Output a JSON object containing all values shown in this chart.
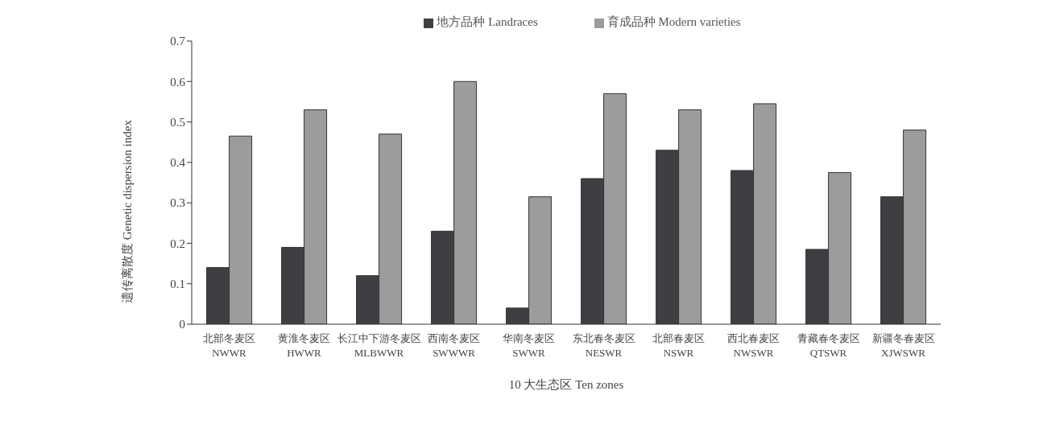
{
  "chart_data": {
    "type": "bar",
    "xlabel": "10 大生态区  Ten zones",
    "ylabel": "遗传离散度  Genetic dispersion index",
    "categories": [
      "北部冬麦区\nNWWR",
      "黄淮冬麦区\nHWWR",
      "长江中下游冬麦区\nMLBWWR",
      "西南冬麦区\nSWWWR",
      "华南冬麦区\nSWWR",
      "东北春冬麦区\nNESWR",
      "北部春麦区\nNSWR",
      "西北春麦区\nNWSWR",
      "青藏春冬麦区\nQTSWR",
      "新疆冬春麦区\nXJWSWR"
    ],
    "series": [
      {
        "name": "地方品种  Landraces",
        "color": "#403e42",
        "values": [
          0.14,
          0.19,
          0.12,
          0.23,
          0.04,
          0.36,
          0.43,
          0.38,
          0.185,
          0.315
        ]
      },
      {
        "name": "育成品种  Modern  varieties",
        "color": "#9c9c9c",
        "values": [
          0.465,
          0.53,
          0.47,
          0.6,
          0.315,
          0.57,
          0.53,
          0.545,
          0.375,
          0.48
        ]
      }
    ],
    "ylim": [
      0,
      0.7
    ],
    "yticks": [
      0,
      0.1,
      0.2,
      0.3,
      0.4,
      0.5,
      0.6,
      0.7
    ],
    "grid": false,
    "legend": "top"
  }
}
